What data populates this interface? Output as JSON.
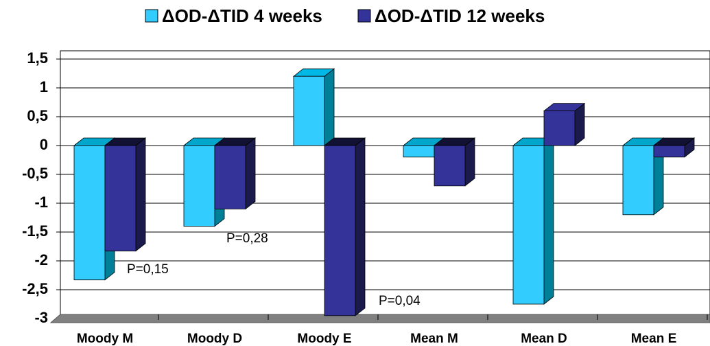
{
  "chart_data": {
    "type": "bar3d",
    "categories": [
      "Moody M",
      "Moody D",
      "Moody E",
      "Mean M",
      "Mean D",
      "Mean E"
    ],
    "series": [
      {
        "name": "ΔOD-ΔTID 4 weeks",
        "color": "#33ccff",
        "values": [
          -2.33,
          -1.4,
          1.2,
          -0.2,
          -2.75,
          -1.2
        ]
      },
      {
        "name": "ΔOD-ΔTID 12 weeks",
        "color": "#333399",
        "values": [
          -1.83,
          -1.1,
          -2.95,
          -0.7,
          0.6,
          -0.2
        ]
      }
    ],
    "ylim": [
      -3,
      1.5
    ],
    "yticks": [
      {
        "value": 1.5,
        "label": "1,5"
      },
      1,
      {
        "value": 0.5,
        "label": "0,5"
      },
      0,
      {
        "value": -0.5,
        "label": "-0,5"
      },
      -1,
      {
        "value": -1.5,
        "label": "-1,5"
      },
      -2,
      {
        "value": -2.5,
        "label": "-2,5"
      },
      -3
    ],
    "annotations": [
      "P=0,15",
      "P=0,28",
      "P=0,04"
    ],
    "legend": "top",
    "grid": true
  }
}
